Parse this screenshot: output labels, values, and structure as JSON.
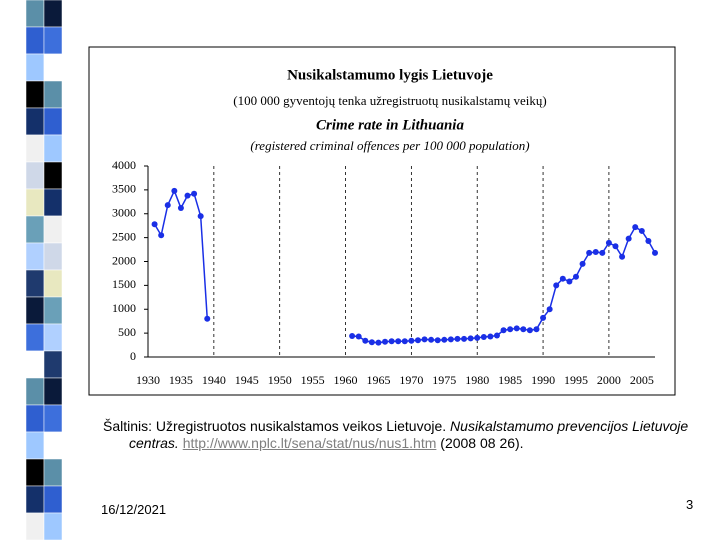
{
  "chart_data": {
    "type": "line",
    "title": "Nusikalstamumo lygis Lietuvoje",
    "subtitle": "(100 000 gyventojų tenka užregistruotų nusikalstamų veikų)",
    "title_en": "Crime rate in Lithuania",
    "subtitle_en": "(registered criminal offences per 100 000 population)",
    "color": "#1a2fe6",
    "x": [
      1931,
      1932,
      1933,
      1934,
      1935,
      1936,
      1937,
      1938,
      1939,
      1940,
      1941,
      1942,
      1943,
      1944,
      1945,
      1946,
      1947,
      1948,
      1949,
      1950,
      1951,
      1952,
      1953,
      1954,
      1955,
      1956,
      1957,
      1958,
      1959,
      1960,
      1961,
      1962,
      1963,
      1964,
      1965,
      1966,
      1967,
      1968,
      1969,
      1970,
      1971,
      1972,
      1973,
      1974,
      1975,
      1976,
      1977,
      1978,
      1979,
      1980,
      1981,
      1982,
      1983,
      1984,
      1985,
      1986,
      1987,
      1988,
      1989,
      1990,
      1991,
      1992,
      1993,
      1994,
      1995,
      1996,
      1997,
      1998,
      1999,
      2000,
      2001,
      2002,
      2003,
      2004,
      2005,
      2006,
      2007
    ],
    "values": [
      2780,
      2550,
      3180,
      3480,
      3120,
      3380,
      3420,
      2950,
      800,
      null,
      null,
      null,
      null,
      null,
      null,
      null,
      null,
      null,
      null,
      null,
      null,
      null,
      null,
      null,
      null,
      null,
      null,
      null,
      null,
      null,
      440,
      430,
      340,
      310,
      300,
      320,
      330,
      330,
      330,
      340,
      350,
      370,
      360,
      350,
      360,
      370,
      380,
      380,
      390,
      400,
      420,
      430,
      450,
      560,
      580,
      600,
      580,
      560,
      580,
      820,
      1000,
      1500,
      1640,
      1580,
      1680,
      1950,
      2180,
      2200,
      2180,
      2390,
      2320,
      2100,
      2480,
      2720,
      2640,
      2430,
      2180
    ],
    "xlim": [
      1930,
      2007
    ],
    "xticks": [
      1930,
      1935,
      1940,
      1945,
      1950,
      1955,
      1960,
      1965,
      1970,
      1975,
      1980,
      1985,
      1990,
      1995,
      2000,
      2005
    ],
    "ylim": [
      0,
      4000
    ],
    "yticks": [
      0,
      500,
      1000,
      1500,
      2000,
      2500,
      3000,
      3500,
      4000
    ]
  },
  "source": {
    "plain": "Šaltinis: Užregistruotos nusikalstamos veikos Lietuvoje.",
    "italic": "Nusikalstamumo prevencijos Lietuvoje centras.",
    "link": "http://www.nplc.lt/sena/stat/nus/nus1.htm",
    "date": "(2008 08 26)."
  },
  "footer": {
    "date": "16/12/2021",
    "page": "3"
  }
}
